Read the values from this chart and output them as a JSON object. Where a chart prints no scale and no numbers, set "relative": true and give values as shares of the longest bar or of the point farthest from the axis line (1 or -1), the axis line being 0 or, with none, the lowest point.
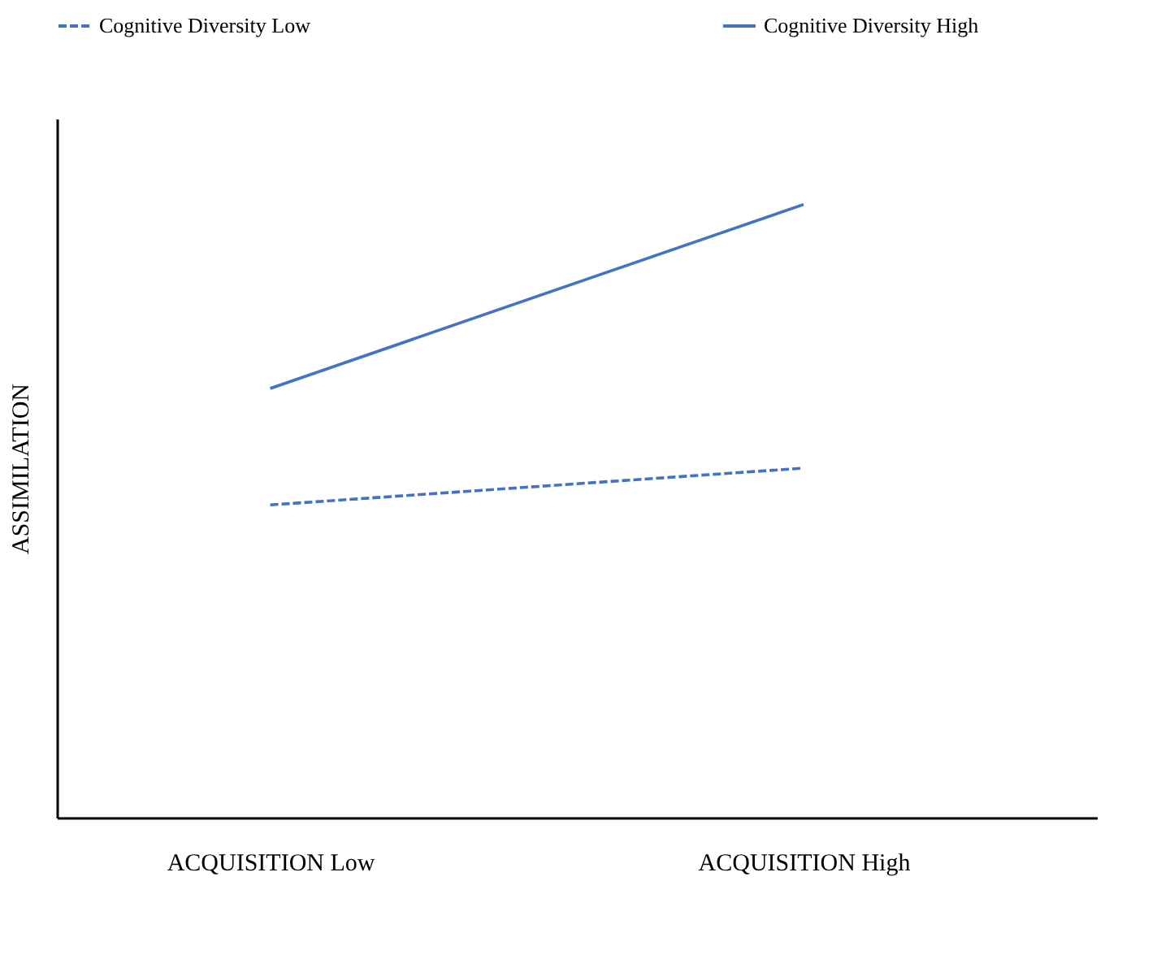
{
  "chart_data": {
    "type": "line",
    "relative": true,
    "ylabel": "ASSIMILATION",
    "categories": [
      "ACQUISITION Low",
      "ACQUISITION High"
    ],
    "series": [
      {
        "name": "Cognitive Diversity Low",
        "color": "#4472c4",
        "line_style": "dashed",
        "values": [
          0.51,
          0.57
        ]
      },
      {
        "name": "Cognitive Diversity High",
        "color": "#4472c4",
        "line_style": "solid",
        "values": [
          0.7,
          1.0
        ]
      }
    ],
    "legend": "top",
    "grid": false,
    "marker": "none"
  }
}
